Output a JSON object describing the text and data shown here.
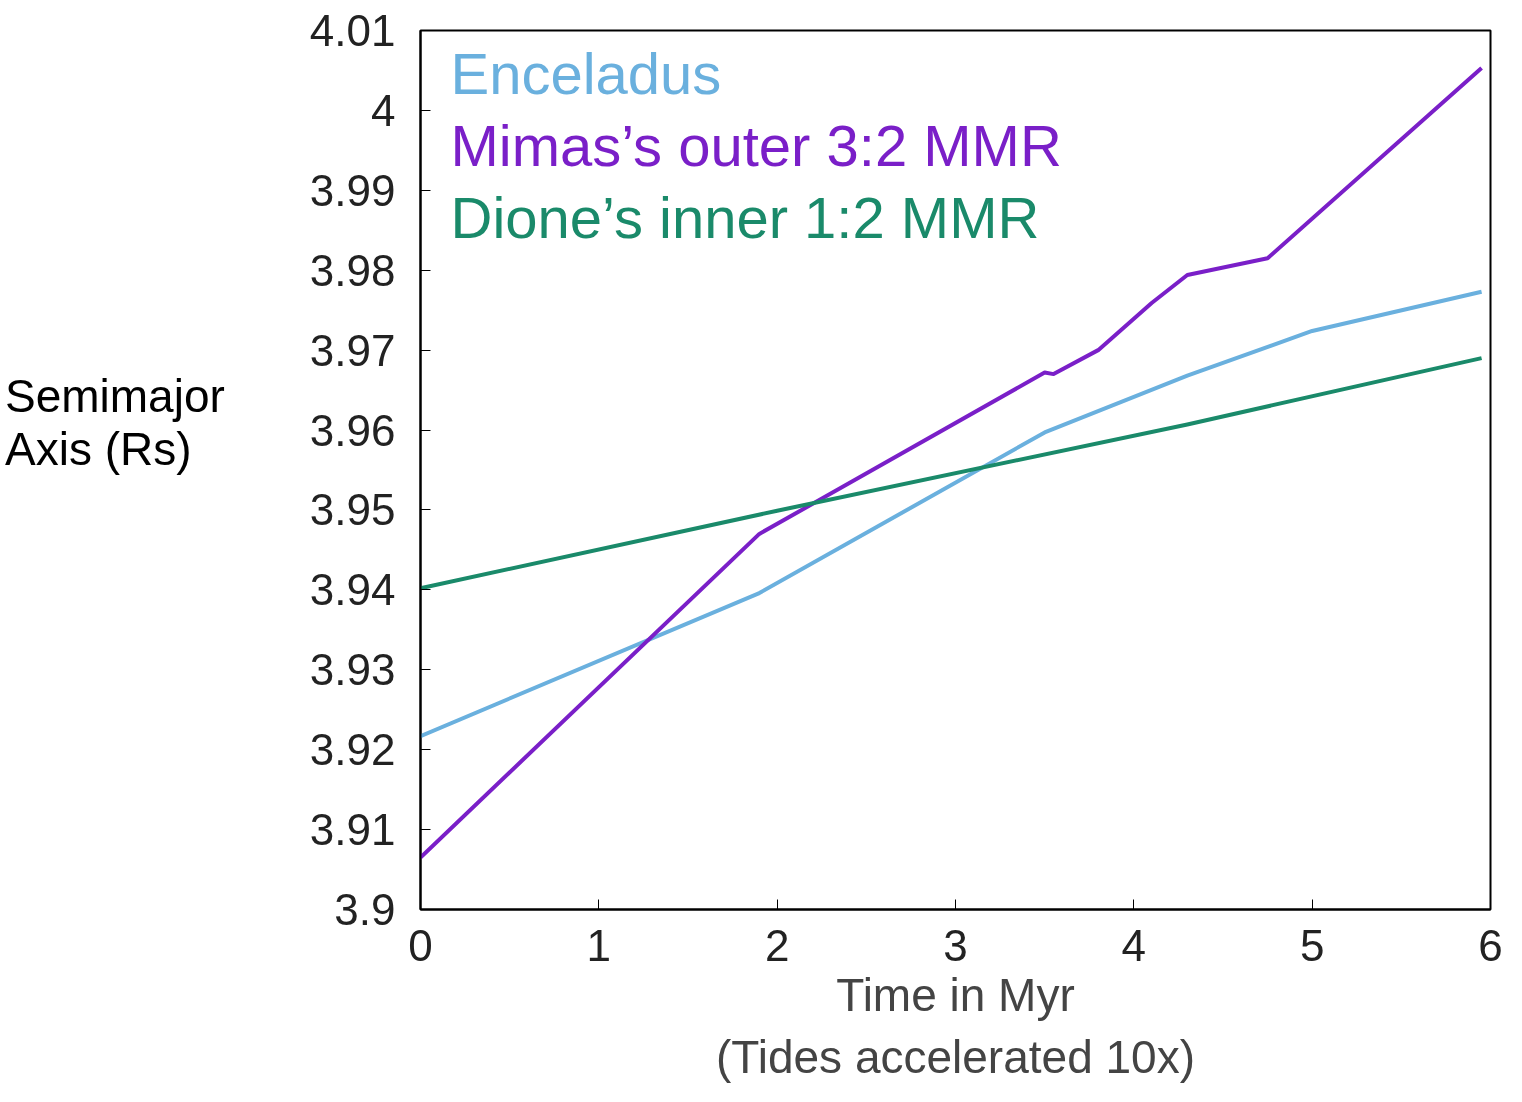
{
  "chart_data": {
    "type": "line",
    "xlabel": "Time in Myr\n(Tides accelerated 10x)",
    "ylabel": "Semimajor\nAxis (Rs)",
    "xlim": [
      0,
      6
    ],
    "xticks": [
      0,
      1,
      2,
      3,
      4,
      5,
      6
    ],
    "ylim": [
      3.9,
      4.01
    ],
    "yticks": [
      3.9,
      3.91,
      3.92,
      3.93,
      3.94,
      3.95,
      3.96,
      3.97,
      3.98,
      3.99,
      4,
      4.01
    ],
    "grid": false,
    "legend": "top left",
    "marker": "none",
    "line_style": "solid",
    "series": [
      {
        "name": "Enceladus",
        "color": "#6ab0de",
        "x": [
          0,
          1.9,
          3.5,
          4.3,
          5,
          5.95
        ],
        "values": [
          3.9217,
          3.9396,
          3.9597,
          3.9668,
          3.9724,
          3.9773
        ]
      },
      {
        "name": "Mimas’s outer 3:2 MMR",
        "color": "#7a1fc8",
        "x": [
          0,
          1.9,
          3.5,
          3.55,
          3.8,
          4.1,
          4.3,
          4.75,
          5.95
        ],
        "values": [
          3.9065,
          3.947,
          3.9672,
          3.967,
          3.97,
          3.9759,
          3.9794,
          3.9815,
          4.0053
        ]
      },
      {
        "name": "Dione’s inner 1:2 MMR",
        "color": "#1a8a6a",
        "x": [
          0,
          2,
          4.3,
          5.95
        ],
        "values": [
          3.9402,
          3.9499,
          3.9607,
          3.969
        ]
      }
    ]
  }
}
